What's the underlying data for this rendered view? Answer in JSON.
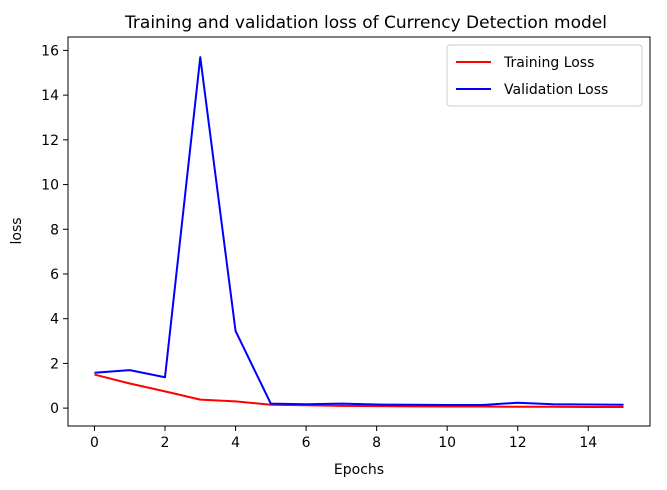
{
  "chart_data": {
    "type": "line",
    "title": "Training and validation loss of Currency Detection model",
    "xlabel": "Epochs",
    "ylabel": "loss",
    "x": [
      0,
      1,
      2,
      3,
      4,
      5,
      6,
      7,
      8,
      9,
      10,
      11,
      12,
      13,
      14,
      15
    ],
    "xlim": [
      -0.75,
      15.75
    ],
    "ylim": [
      -0.8,
      16.6
    ],
    "xticks": [
      0,
      2,
      4,
      6,
      8,
      10,
      12,
      14
    ],
    "yticks": [
      0,
      2,
      4,
      6,
      8,
      10,
      12,
      14,
      16
    ],
    "grid": false,
    "legend_position": "top-right",
    "series": [
      {
        "name": "Training Loss",
        "color": "#ff0000",
        "values": [
          1.5,
          1.1,
          0.75,
          0.38,
          0.3,
          0.15,
          0.13,
          0.1,
          0.09,
          0.08,
          0.07,
          0.07,
          0.06,
          0.06,
          0.05,
          0.05
        ]
      },
      {
        "name": "Validation Loss",
        "color": "#0000ff",
        "values": [
          1.58,
          1.7,
          1.38,
          15.7,
          3.45,
          0.2,
          0.17,
          0.2,
          0.16,
          0.15,
          0.14,
          0.14,
          0.24,
          0.17,
          0.16,
          0.15
        ]
      }
    ]
  }
}
